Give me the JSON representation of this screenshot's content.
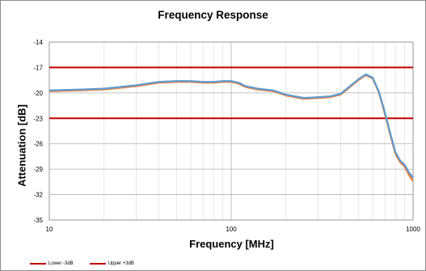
{
  "chart_data": {
    "type": "line",
    "title": "Frequency Response",
    "xlabel": "Frequency [MHz]",
    "ylabel": "Attenuation [dB]",
    "x_scale": "log",
    "xlim": [
      10,
      1000
    ],
    "ylim": [
      -35,
      -14
    ],
    "x_ticks": [
      10,
      100,
      1000
    ],
    "x_tick_labels": [
      "10",
      "100",
      "1000"
    ],
    "y_ticks": [
      -14,
      -17,
      -20,
      -23,
      -26,
      -29,
      -32,
      -35
    ],
    "y_tick_labels": [
      "-14",
      "-17",
      "-20",
      "-23",
      "-26",
      "-29",
      "-32",
      "-35"
    ],
    "grid": true,
    "legend_position": "bottom-left",
    "reference_lines": [
      {
        "name": "Lower -3dB",
        "y": -23,
        "color": "#c00000"
      },
      {
        "name": "Upper +3dB",
        "y": -17,
        "color": "#c00000"
      }
    ],
    "series": [
      {
        "color": "#ed7d31",
        "x": [
          10,
          15,
          20,
          30,
          40,
          50,
          60,
          70,
          80,
          90,
          100,
          110,
          120,
          140,
          170,
          200,
          250,
          300,
          350,
          400,
          450,
          500,
          550,
          600,
          650,
          700,
          750,
          800,
          850,
          900,
          950,
          1000
        ],
        "y": [
          -19.8,
          -19.7,
          -19.6,
          -19.2,
          -18.8,
          -18.7,
          -18.7,
          -18.8,
          -18.8,
          -18.7,
          -18.7,
          -18.9,
          -19.3,
          -19.6,
          -19.8,
          -20.3,
          -20.7,
          -20.6,
          -20.5,
          -20.2,
          -19.3,
          -18.5,
          -17.9,
          -18.3,
          -20.0,
          -22.5,
          -25.0,
          -27.2,
          -28.2,
          -28.7,
          -29.7,
          -30.4
        ]
      },
      {
        "color": "#a5a5a5",
        "x": [
          10,
          15,
          20,
          30,
          40,
          50,
          60,
          70,
          80,
          90,
          100,
          110,
          120,
          140,
          170,
          200,
          250,
          300,
          350,
          400,
          450,
          500,
          550,
          600,
          650,
          700,
          750,
          800,
          850,
          900,
          950,
          1000
        ],
        "y": [
          -19.7,
          -19.6,
          -19.5,
          -19.1,
          -18.7,
          -18.6,
          -18.6,
          -18.7,
          -18.7,
          -18.6,
          -18.6,
          -18.8,
          -19.2,
          -19.5,
          -19.7,
          -20.2,
          -20.6,
          -20.5,
          -20.4,
          -20.1,
          -19.2,
          -18.4,
          -17.8,
          -18.2,
          -19.9,
          -22.3,
          -24.8,
          -27.0,
          -28.0,
          -28.5,
          -29.4,
          -30.0
        ]
      },
      {
        "color": "#5b9bd5",
        "x": [
          10,
          15,
          20,
          30,
          40,
          50,
          60,
          70,
          80,
          90,
          100,
          110,
          120,
          140,
          170,
          200,
          250,
          300,
          350,
          400,
          450,
          500,
          550,
          600,
          650,
          700,
          750,
          800,
          850,
          900,
          950,
          1000
        ],
        "y": [
          -19.7,
          -19.6,
          -19.5,
          -19.1,
          -18.7,
          -18.6,
          -18.6,
          -18.7,
          -18.7,
          -18.6,
          -18.6,
          -18.8,
          -19.2,
          -19.5,
          -19.7,
          -20.2,
          -20.6,
          -20.5,
          -20.4,
          -20.1,
          -19.2,
          -18.4,
          -17.8,
          -18.2,
          -19.9,
          -22.3,
          -24.8,
          -27.0,
          -28.0,
          -28.5,
          -29.4,
          -30.0
        ]
      }
    ]
  }
}
